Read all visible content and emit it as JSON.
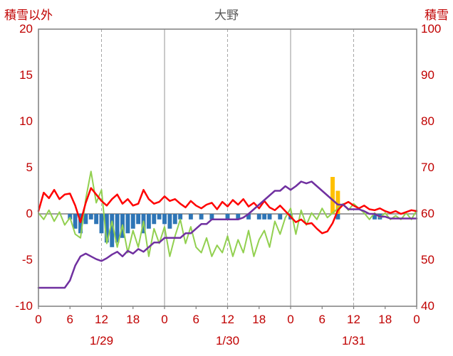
{
  "title": "大野",
  "left_axis": {
    "label": "積雪以外",
    "ticks": [
      20,
      15,
      10,
      5,
      0,
      -5,
      -10
    ],
    "min": -10,
    "max": 20
  },
  "right_axis": {
    "label": "積雪",
    "ticks": [
      100,
      90,
      80,
      70,
      60,
      50,
      40
    ],
    "min": 40,
    "max": 100
  },
  "x_axis": {
    "hours_total": 72,
    "tick_positions": [
      0,
      6,
      12,
      18,
      24,
      30,
      36,
      42,
      48,
      54,
      60,
      66,
      72
    ],
    "tick_labels": [
      "0",
      "6",
      "12",
      "18",
      "0",
      "6",
      "12",
      "18",
      "0",
      "6",
      "12",
      "18",
      "0"
    ],
    "date_positions": [
      12,
      36,
      60
    ],
    "date_labels": [
      "1/29",
      "1/30",
      "1/31"
    ]
  },
  "colors": {
    "axis_text": "#c00000",
    "title_text": "#595959",
    "plot_border": "#7f7f7f",
    "zero_line": "#7f7f7f",
    "grid_solid": "#a6a6a6",
    "grid_dashed": "#a6a6a6",
    "red_line": "#ff0000",
    "green_line": "#92d050",
    "purple_line": "#7030a0",
    "blue_bar": "#2e75b6",
    "orange_bar": "#ffc000"
  },
  "chart_data": {
    "type": "line",
    "title": "大野",
    "x_unit": "hour",
    "x_range": [
      0,
      72
    ],
    "left_ylim": [
      -10,
      20
    ],
    "right_ylim": [
      40,
      100
    ],
    "grid": {
      "vertical_solid_at_hours": [
        24,
        48
      ],
      "vertical_dashed_at_hours": [
        12,
        36,
        60
      ],
      "zero_line": true
    },
    "legend": "none",
    "series": [
      {
        "name": "blue-bars",
        "type": "bar",
        "color": "#2e75b6",
        "axis": "left",
        "values": [
          0,
          0,
          0,
          0,
          0,
          0,
          -0.6,
          -1.6,
          -2.1,
          -1.1,
          -0.6,
          -1.1,
          -2.1,
          -3.1,
          -3.6,
          -3.1,
          -2.6,
          -2.1,
          -1.6,
          -1.1,
          -2.1,
          -1.6,
          -1.1,
          -0.6,
          -1.1,
          -1.6,
          -1.1,
          -0.6,
          0,
          -0.6,
          0,
          -0.6,
          0,
          -0.6,
          0,
          0,
          -0.6,
          0,
          -0.6,
          0,
          -0.6,
          0,
          -0.6,
          -0.6,
          -0.6,
          0,
          -0.6,
          0,
          -0.6,
          0,
          0,
          0,
          0,
          0,
          0,
          0,
          0,
          -0.6,
          0,
          0,
          0,
          0,
          0,
          0,
          -0.6,
          -0.6,
          0,
          0,
          0,
          0,
          0,
          0,
          0
        ]
      },
      {
        "name": "orange-bars",
        "type": "bar",
        "color": "#ffc000",
        "axis": "left",
        "values": [
          0,
          0,
          0,
          0,
          0,
          0,
          0,
          0,
          0,
          0,
          0,
          0,
          0,
          0,
          0,
          0,
          0,
          0,
          0,
          0,
          0,
          0,
          0,
          0,
          0,
          0,
          0,
          0,
          0,
          0,
          0,
          0,
          0,
          0,
          0,
          0,
          0,
          0,
          0,
          0,
          0,
          0,
          0,
          0,
          0,
          0,
          0,
          0,
          0,
          0,
          0,
          0,
          0,
          0,
          0,
          0,
          4.0,
          2.5,
          0,
          0,
          0,
          0,
          0,
          0,
          0,
          0,
          0,
          0,
          0,
          0,
          0,
          0,
          0
        ]
      },
      {
        "name": "green-line",
        "type": "line",
        "color": "#92d050",
        "width": 2,
        "values": [
          0.1,
          -0.6,
          0.4,
          -0.8,
          0.2,
          -1.2,
          -0.4,
          -2.2,
          -2.6,
          1.6,
          4.6,
          1.2,
          2.6,
          -3.2,
          -0.8,
          -3.6,
          -1.2,
          -4.2,
          -1.8,
          -3.6,
          -0.8,
          -4.6,
          -1.6,
          -3.2,
          -1.4,
          -4.6,
          -2.4,
          -0.6,
          -3.2,
          -1.4,
          -3.6,
          -4.2,
          -2.6,
          -4.6,
          -3.4,
          -4.2,
          -2.4,
          -4.6,
          -2.8,
          -4.2,
          -1.8,
          -4.6,
          -2.8,
          -1.8,
          -3.6,
          -0.8,
          -2.2,
          -0.4,
          0.6,
          -2.2,
          0.4,
          -1.2,
          0.1,
          -0.6,
          0.6,
          -0.4,
          0.1,
          0.6,
          1.1,
          0.4,
          1.1,
          0.6,
          0.1,
          -0.6,
          0.1,
          -0.4,
          0.1,
          -0.6,
          -0.2,
          -0.6,
          0.1,
          -0.6,
          0.4
        ]
      },
      {
        "name": "red-line",
        "type": "line",
        "color": "#ff0000",
        "width": 2.5,
        "values": [
          0.3,
          2.3,
          1.7,
          2.6,
          1.6,
          2.1,
          2.2,
          0.9,
          -0.9,
          1.2,
          2.8,
          2.1,
          1.4,
          0.9,
          1.6,
          2.1,
          1.1,
          1.6,
          0.9,
          1.1,
          2.6,
          1.6,
          1.1,
          1.3,
          1.9,
          1.4,
          1.6,
          1.1,
          0.7,
          1.4,
          0.9,
          0.6,
          1.0,
          1.2,
          0.5,
          1.3,
          0.8,
          1.5,
          1.0,
          1.6,
          0.8,
          1.2,
          0.6,
          1.4,
          0.7,
          0.4,
          0.9,
          0.3,
          -0.3,
          -0.9,
          -0.6,
          -1.1,
          -1.0,
          -1.6,
          -2.1,
          -1.9,
          -1.0,
          0.4,
          1.0,
          1.3,
          0.9,
          0.6,
          0.9,
          0.5,
          0.4,
          0.6,
          0.3,
          0.1,
          0.3,
          0.0,
          0.2,
          0.4,
          0.3
        ]
      },
      {
        "name": "purple-line",
        "type": "line",
        "color": "#7030a0",
        "width": 2.5,
        "values": [
          -8.0,
          -8.0,
          -8.0,
          -8.0,
          -8.0,
          -8.0,
          -7.2,
          -5.6,
          -4.6,
          -4.3,
          -4.6,
          -4.9,
          -5.1,
          -4.8,
          -4.4,
          -4.1,
          -4.6,
          -4.0,
          -4.3,
          -3.8,
          -4.1,
          -3.6,
          -3.1,
          -3.1,
          -2.6,
          -2.6,
          -2.6,
          -2.6,
          -2.1,
          -2.1,
          -1.6,
          -1.1,
          -1.1,
          -0.6,
          -0.6,
          -0.6,
          -0.6,
          -0.6,
          -0.6,
          -0.4,
          0.0,
          0.5,
          1.0,
          1.5,
          2.0,
          2.5,
          2.5,
          3.0,
          2.6,
          3.0,
          3.5,
          3.3,
          3.5,
          3.0,
          2.5,
          2.0,
          1.5,
          1.0,
          1.0,
          0.5,
          0.5,
          0.5,
          0.3,
          0.0,
          0.0,
          -0.3,
          -0.3,
          -0.5,
          -0.5,
          -0.5,
          -0.5,
          -0.5,
          -0.5
        ]
      }
    ]
  }
}
